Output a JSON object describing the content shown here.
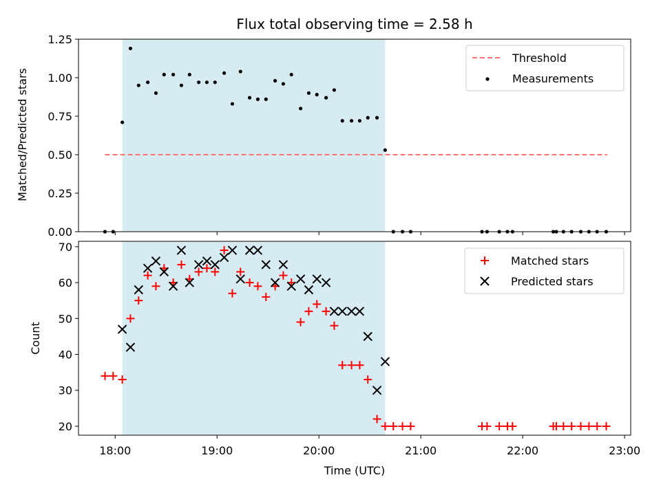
{
  "chart_data": [
    {
      "type": "scatter",
      "title": "Flux total observing time = 2.58 h",
      "xlabel": "",
      "ylabel": "Matched/Predicted stars",
      "xlim_hours": [
        17.64,
        23.06
      ],
      "ylim": [
        0,
        1.25
      ],
      "yticks": [
        0,
        0.25,
        0.5,
        0.75,
        1.0,
        1.25
      ],
      "ytick_labels": [
        "0.00",
        "0.25",
        "0.50",
        "0.75",
        "1.00",
        "1.25"
      ],
      "observing_window_hours": [
        18.07,
        20.65
      ],
      "threshold": {
        "name": "Threshold",
        "value": 0.5,
        "x_range_hours": [
          17.9,
          22.83
        ]
      },
      "legend": [
        "Threshold",
        "Measurements"
      ],
      "legend_location": "top-right",
      "series": [
        {
          "name": "Measurements",
          "x_hours": [
            17.9,
            17.98,
            18.07,
            18.15,
            18.23,
            18.32,
            18.4,
            18.48,
            18.57,
            18.65,
            18.73,
            18.82,
            18.9,
            18.98,
            19.07,
            19.15,
            19.23,
            19.32,
            19.4,
            19.48,
            19.57,
            19.65,
            19.73,
            19.82,
            19.9,
            19.98,
            20.07,
            20.15,
            20.23,
            20.32,
            20.4,
            20.48,
            20.57,
            20.65,
            20.73,
            20.82,
            20.9,
            21.6,
            21.65,
            21.77,
            21.85,
            21.9,
            22.3,
            22.33,
            22.4,
            22.48,
            22.57,
            22.65,
            22.73,
            22.82
          ],
          "y": [
            0,
            0,
            0.71,
            1.19,
            0.95,
            0.97,
            0.9,
            1.02,
            1.02,
            0.95,
            1.02,
            0.97,
            0.97,
            0.97,
            1.03,
            0.83,
            1.04,
            0.87,
            0.86,
            0.86,
            0.98,
            0.96,
            1.02,
            0.8,
            0.9,
            0.89,
            0.87,
            0.92,
            0.72,
            0.72,
            0.72,
            0.74,
            0.74,
            0.53,
            0,
            0,
            0,
            0,
            0,
            0,
            0,
            0,
            0,
            0,
            0,
            0,
            0,
            0,
            0,
            0
          ]
        }
      ]
    },
    {
      "type": "scatter",
      "title": "",
      "xlabel": "Time (UTC)",
      "ylabel": "Count",
      "xlim_hours": [
        17.64,
        23.06
      ],
      "ylim": [
        17.5,
        71.5
      ],
      "yticks": [
        20,
        30,
        40,
        50,
        60,
        70
      ],
      "ytick_labels": [
        "20",
        "30",
        "40",
        "50",
        "60",
        "70"
      ],
      "xticks_hours": [
        18,
        19,
        20,
        21,
        22,
        23
      ],
      "xtick_labels": [
        "18:00",
        "19:00",
        "20:00",
        "21:00",
        "22:00",
        "23:00"
      ],
      "observing_window_hours": [
        18.07,
        20.65
      ],
      "legend": [
        "Matched stars",
        "Predicted stars"
      ],
      "legend_location": "top-right",
      "series": [
        {
          "name": "Matched stars",
          "x_hours": [
            17.9,
            17.98,
            18.07,
            18.15,
            18.23,
            18.32,
            18.4,
            18.48,
            18.57,
            18.65,
            18.73,
            18.82,
            18.9,
            18.98,
            19.07,
            19.15,
            19.23,
            19.32,
            19.4,
            19.48,
            19.57,
            19.65,
            19.73,
            19.82,
            19.9,
            19.98,
            20.07,
            20.15,
            20.23,
            20.32,
            20.4,
            20.48,
            20.57,
            20.65,
            20.73,
            20.82,
            20.9,
            21.6,
            21.65,
            21.77,
            21.85,
            21.9,
            22.3,
            22.33,
            22.4,
            22.48,
            22.57,
            22.65,
            22.73,
            22.82
          ],
          "y": [
            34,
            34,
            33,
            50,
            55,
            62,
            59,
            64,
            60,
            65,
            61,
            63,
            64,
            63,
            69,
            57,
            63,
            60,
            59,
            56,
            59,
            62,
            60,
            49,
            52,
            54,
            52,
            48,
            37,
            37,
            37,
            33,
            22,
            20,
            20,
            20,
            20,
            20,
            20,
            20,
            20,
            20,
            20,
            20,
            20,
            20,
            20,
            20,
            20,
            20
          ]
        },
        {
          "name": "Predicted stars",
          "x_hours": [
            18.07,
            18.15,
            18.23,
            18.32,
            18.4,
            18.48,
            18.57,
            18.65,
            18.73,
            18.82,
            18.9,
            18.98,
            19.07,
            19.15,
            19.23,
            19.32,
            19.4,
            19.48,
            19.57,
            19.65,
            19.73,
            19.82,
            19.9,
            19.98,
            20.07,
            20.15,
            20.23,
            20.32,
            20.4,
            20.48,
            20.57,
            20.65
          ],
          "y": [
            47,
            42,
            58,
            64,
            66,
            63,
            59,
            69,
            60,
            65,
            66,
            65,
            67,
            69,
            61,
            69,
            69,
            65,
            60,
            65,
            59,
            61,
            58,
            61,
            60,
            52,
            52,
            52,
            52,
            45,
            30,
            38
          ]
        }
      ]
    }
  ]
}
